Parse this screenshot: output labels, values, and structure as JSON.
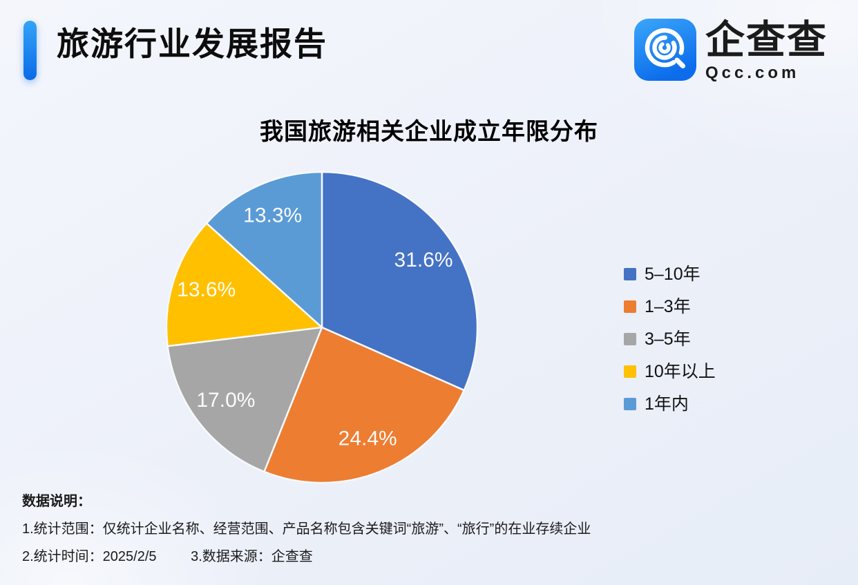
{
  "header": {
    "title": "旅游行业发展报告"
  },
  "logo": {
    "brand": "企查查",
    "domain": "Qcc.com",
    "icon": "qcc-magnifier-icon",
    "icon_gradient": [
      "#3BA7FA",
      "#0C6CEC"
    ]
  },
  "chart_data": {
    "type": "pie",
    "title": "我国旅游相关企业成立年限分布",
    "labels": [
      "5–10年",
      "1–3年",
      "3–5年",
      "10年以上",
      "1年内"
    ],
    "values": [
      31.6,
      24.4,
      17.0,
      13.6,
      13.3
    ],
    "value_labels": [
      "31.6%",
      "24.4%",
      "17.0%",
      "13.6%",
      "13.3%"
    ],
    "colors": [
      "#4472C4",
      "#ED7D31",
      "#A6A6A6",
      "#FFC000",
      "#5B9BD5"
    ],
    "legend_position": "right",
    "start_angle_deg": 0,
    "direction": "clockwise",
    "slice_border_color": "#F7F9FD",
    "label_color": "#FFFFFF"
  },
  "notes": {
    "heading": "数据说明：",
    "line1": "1.统计范围：仅统计企业名称、经营范围、产品名称包含关键词“旅游”、“旅行”的在业存续企业",
    "line2_time": "2.统计时间：2025/2/5",
    "line2_source": "3.数据来源：企查查"
  },
  "colors": {
    "background": "#ECF0F9",
    "accent_bar_top": "#33A3F7",
    "accent_bar_bottom": "#0B6BE8",
    "text": "#111111"
  }
}
